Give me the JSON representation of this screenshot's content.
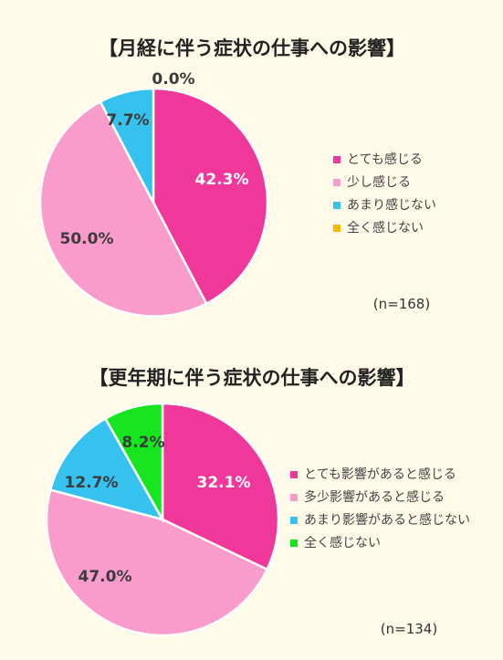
{
  "colors": {
    "background": "#fffbe8",
    "hot_pink": "#f0379a",
    "light_pink": "#f99bcb",
    "sky_blue": "#35c2ee",
    "orange": "#f5b800",
    "green": "#16e51f",
    "text": "#3b3b3b"
  },
  "chart_data": [
    {
      "type": "pie",
      "title": "【月経に伴う症状の仕事への影響】",
      "note": "(n=168)",
      "legend_position": "right",
      "categories": [
        "とても感じる",
        "少し感じる",
        "あまり感じない",
        "全く感じない"
      ],
      "values": [
        42.3,
        50.0,
        7.7,
        0.0
      ],
      "labels": [
        "42.3%",
        "50.0%",
        "7.7%",
        "0.0%"
      ],
      "colors": [
        "#f0379a",
        "#f99bcb",
        "#35c2ee",
        "#f5b800"
      ]
    },
    {
      "type": "pie",
      "title": "【更年期に伴う症状の仕事への影響】",
      "note": "(n=134)",
      "legend_position": "right",
      "categories": [
        "とても影響があると感じる",
        "多少影響があると感じる",
        "あまり影響があると感じない",
        "全く感じない"
      ],
      "values": [
        32.1,
        47.0,
        12.7,
        8.2
      ],
      "labels": [
        "32.1%",
        "47.0%",
        "12.7%",
        "8.2%"
      ],
      "colors": [
        "#f0379a",
        "#f99bcb",
        "#35c2ee",
        "#16e51f"
      ]
    }
  ]
}
